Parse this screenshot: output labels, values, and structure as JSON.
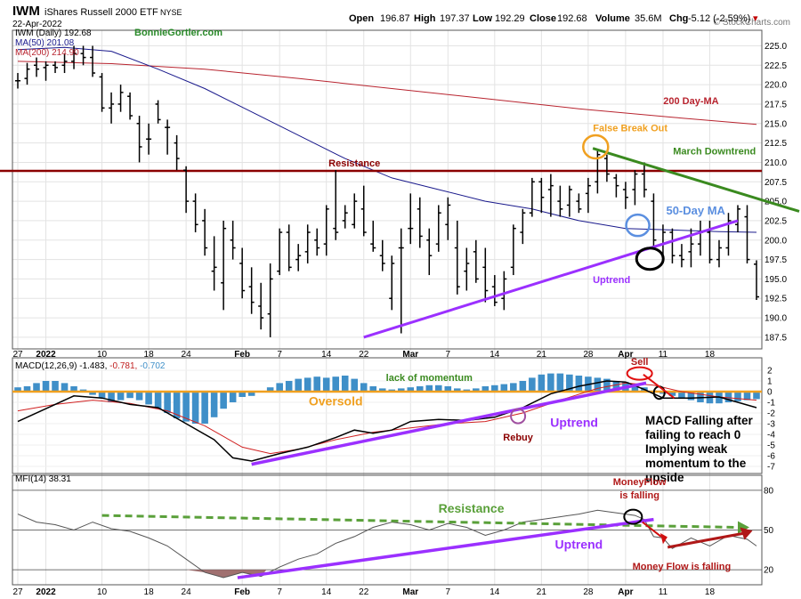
{
  "header": {
    "symbol": "IWM",
    "name": "iShares Russell 2000 ETF",
    "exchange": "NYSE",
    "date": "22-Apr-2022",
    "open_label": "Open",
    "open": "196.87",
    "high_label": "High",
    "high": "197.37",
    "low_label": "Low",
    "low": "192.29",
    "close_label": "Close",
    "close": "192.68",
    "volume_label": "Volume",
    "volume": "35.6M",
    "chg_label": "Chg",
    "chg": "-5.12 (-2.59%)",
    "chg_glyph": "▾",
    "watermark": "© StockCharts.com"
  },
  "legend": {
    "price": "IWM (Daily) 192.68",
    "ma50": "MA(50) 201.08",
    "ma200": "MA(200) 214.90",
    "author": "BonnieGortler.com"
  },
  "colors": {
    "price": "#000000",
    "ma50": "#1a1a8c",
    "ma200": "#b8242f",
    "resistance": "#8b0000",
    "uptrend": "#9b30ff",
    "downtrend": "#3a8a1f",
    "false_breakout": "#f0a020",
    "ma_circle": "#5b8fe0",
    "macd_hist": "#3f8fc8",
    "oversold_line": "#f0a020",
    "mfi_fill": "#a07070",
    "mfi_resistance": "#5aa03a",
    "money_flow": "#b01818"
  },
  "x_axis": {
    "labels": [
      {
        "text": "27",
        "i": 0
      },
      {
        "text": "2022",
        "i": 3
      },
      {
        "text": "10",
        "i": 9
      },
      {
        "text": "18",
        "i": 14
      },
      {
        "text": "24",
        "i": 18
      },
      {
        "text": "Feb",
        "i": 24
      },
      {
        "text": "7",
        "i": 28
      },
      {
        "text": "14",
        "i": 33
      },
      {
        "text": "22",
        "i": 37
      },
      {
        "text": "Mar",
        "i": 42
      },
      {
        "text": "7",
        "i": 46
      },
      {
        "text": "14",
        "i": 51
      },
      {
        "text": "21",
        "i": 56
      },
      {
        "text": "28",
        "i": 61
      },
      {
        "text": "Apr",
        "i": 65
      },
      {
        "text": "11",
        "i": 69
      },
      {
        "text": "18",
        "i": 74
      }
    ],
    "bold": [
      "2022",
      "Feb",
      "Mar",
      "Apr"
    ]
  },
  "chart_data": [
    {
      "type": "ohlc",
      "panel": "price",
      "ylim": [
        186,
        227
      ],
      "yticks": [
        187.5,
        190.0,
        192.5,
        195.0,
        197.5,
        200.0,
        202.5,
        205.0,
        207.5,
        210.0,
        212.5,
        215.0,
        217.5,
        220.0,
        222.5,
        225.0
      ],
      "ohlc": [
        [
          220.5,
          221.5,
          219.5,
          220.5
        ],
        [
          220.8,
          222.8,
          220.0,
          222.0
        ],
        [
          222.5,
          223.5,
          221.0,
          222.0
        ],
        [
          222.2,
          223.0,
          220.5,
          222.5
        ],
        [
          222.5,
          223.0,
          221.5,
          222.2
        ],
        [
          222.5,
          224.0,
          221.5,
          223.0
        ],
        [
          223.0,
          225.0,
          222.0,
          224.0
        ],
        [
          224.0,
          225.0,
          222.5,
          223.5
        ],
        [
          223.5,
          225.0,
          221.0,
          221.5
        ],
        [
          221.0,
          221.5,
          216.5,
          217.0
        ],
        [
          217.0,
          219.0,
          215.0,
          217.5
        ],
        [
          217.5,
          220.0,
          216.5,
          219.0
        ],
        [
          218.5,
          219.0,
          215.5,
          216.0
        ],
        [
          215.0,
          216.0,
          210.0,
          212.0
        ],
        [
          213.0,
          215.0,
          211.0,
          213.0
        ],
        [
          217.5,
          218.0,
          215.0,
          215.5
        ],
        [
          214.5,
          215.5,
          211.0,
          214.5
        ],
        [
          212.5,
          213.5,
          209.0,
          210.5
        ],
        [
          209.0,
          209.5,
          203.5,
          205.0
        ],
        [
          205.0,
          206.0,
          201.0,
          202.0
        ],
        [
          202.5,
          204.0,
          198.0,
          199.0
        ],
        [
          196.0,
          200.5,
          193.5,
          196.5
        ],
        [
          194.5,
          202.5,
          191.0,
          201.5
        ],
        [
          200.0,
          202.5,
          197.5,
          199.0
        ],
        [
          197.0,
          199.0,
          192.5,
          193.5
        ],
        [
          194.0,
          196.5,
          190.5,
          192.0
        ],
        [
          191.5,
          194.5,
          188.5,
          190.0
        ],
        [
          190.5,
          197.0,
          187.5,
          195.0
        ],
        [
          196.0,
          201.5,
          195.5,
          201.0
        ],
        [
          201.0,
          202.0,
          196.0,
          196.5
        ],
        [
          197.5,
          199.5,
          196.0,
          198.0
        ],
        [
          198.5,
          202.0,
          197.0,
          201.0
        ],
        [
          200.0,
          201.5,
          198.0,
          199.0
        ],
        [
          199.5,
          204.5,
          198.0,
          204.0
        ],
        [
          201.5,
          209.0,
          200.0,
          201.0
        ],
        [
          202.5,
          204.5,
          201.5,
          203.5
        ],
        [
          202.0,
          206.0,
          201.5,
          205.0
        ],
        [
          204.0,
          207.0,
          200.5,
          201.0
        ],
        [
          199.5,
          202.5,
          198.5,
          199.0
        ],
        [
          198.0,
          200.0,
          196.0,
          197.0
        ],
        [
          192.5,
          198.0,
          191.0,
          197.0
        ],
        [
          199.0,
          201.5,
          188.0,
          199.0
        ],
        [
          201.5,
          206.0,
          199.5,
          201.5
        ],
        [
          204.0,
          205.5,
          199.0,
          200.5
        ],
        [
          200.0,
          201.5,
          195.5,
          198.0
        ],
        [
          199.5,
          204.5,
          198.5,
          203.5
        ],
        [
          202.0,
          205.5,
          200.0,
          204.5
        ],
        [
          199.0,
          202.5,
          193.0,
          194.0
        ],
        [
          196.0,
          199.0,
          193.5,
          197.0
        ],
        [
          198.5,
          200.0,
          194.5,
          195.0
        ],
        [
          196.5,
          199.0,
          192.0,
          193.5
        ],
        [
          194.0,
          195.5,
          191.5,
          192.0
        ],
        [
          192.5,
          196.0,
          191.0,
          195.0
        ],
        [
          196.5,
          202.0,
          195.5,
          201.5
        ],
        [
          201.0,
          204.0,
          199.5,
          203.5
        ],
        [
          203.5,
          208.0,
          203.0,
          207.5
        ],
        [
          207.5,
          208.0,
          203.5,
          205.5
        ],
        [
          206.5,
          208.5,
          203.0,
          207.0
        ],
        [
          205.0,
          207.0,
          203.0,
          204.0
        ],
        [
          204.5,
          207.0,
          203.0,
          206.5
        ],
        [
          205.0,
          206.0,
          203.5,
          204.0
        ],
        [
          206.0,
          208.0,
          203.5,
          207.0
        ],
        [
          207.5,
          211.5,
          206.0,
          211.0
        ],
        [
          210.5,
          211.0,
          207.5,
          208.5
        ],
        [
          208.0,
          208.5,
          205.5,
          207.0
        ],
        [
          206.5,
          207.5,
          204.0,
          205.5
        ],
        [
          206.5,
          209.0,
          204.5,
          208.5
        ],
        [
          208.5,
          210.0,
          205.5,
          206.5
        ],
        [
          205.0,
          206.0,
          199.0,
          200.0
        ],
        [
          199.5,
          202.0,
          197.0,
          201.0
        ],
        [
          201.0,
          201.5,
          197.0,
          198.0
        ],
        [
          198.0,
          199.5,
          196.5,
          197.5
        ],
        [
          198.5,
          201.5,
          196.5,
          199.5
        ],
        [
          199.5,
          202.5,
          198.0,
          201.0
        ],
        [
          201.0,
          202.5,
          197.0,
          197.5
        ],
        [
          197.5,
          200.0,
          196.5,
          199.0
        ],
        [
          199.0,
          203.5,
          198.0,
          202.5
        ],
        [
          202.0,
          204.5,
          201.0,
          204.0
        ],
        [
          203.0,
          204.5,
          197.0,
          197.5
        ],
        [
          196.9,
          197.4,
          192.3,
          192.7
        ]
      ],
      "ma50": [
        [
          0,
          224.5
        ],
        [
          5,
          224.8
        ],
        [
          10,
          224.3
        ],
        [
          15,
          222.0
        ],
        [
          20,
          219.5
        ],
        [
          25,
          216.5
        ],
        [
          30,
          213.5
        ],
        [
          35,
          210.5
        ],
        [
          40,
          208.0
        ],
        [
          45,
          206.5
        ],
        [
          50,
          205.0
        ],
        [
          55,
          204.0
        ],
        [
          60,
          202.5
        ],
        [
          65,
          201.5
        ],
        [
          70,
          201.3
        ],
        [
          75,
          201.1
        ],
        [
          79,
          201.0
        ]
      ],
      "ma200": [
        [
          0,
          223.0
        ],
        [
          10,
          222.7
        ],
        [
          20,
          222.0
        ],
        [
          30,
          220.8
        ],
        [
          40,
          219.5
        ],
        [
          50,
          218.2
        ],
        [
          60,
          216.9
        ],
        [
          70,
          215.8
        ],
        [
          79,
          214.9
        ]
      ],
      "annotations": [
        {
          "text": "Resistance",
          "x": 36,
          "y": 209.5,
          "color": "resistance"
        },
        {
          "text": "200 Day-MA",
          "x": 72,
          "y": 217.5,
          "color": "ma200"
        },
        {
          "text": "False Break Out",
          "x": 65.5,
          "y": 214.0,
          "color": "false_breakout"
        },
        {
          "text": "March Downtrend",
          "x": 74.5,
          "y": 211.0,
          "color": "downtrend"
        },
        {
          "text": "50-Day MA",
          "x": 72.5,
          "y": 203.3,
          "color": "ma_circle"
        },
        {
          "text": "Uptrend",
          "x": 63.5,
          "y": 194.5,
          "color": "uptrend"
        }
      ]
    },
    {
      "type": "macd",
      "panel": "macd",
      "title": "MACD(12,26,9) -1.483, -0.781, -0.702",
      "title_parts": {
        "label": "MACD(12,26,9)",
        "macd": "-1.483,",
        "signal": "-0.781,",
        "hist": "-0.702"
      },
      "ylim": [
        -7.5,
        3
      ],
      "yticks": [
        2,
        1,
        0,
        -1,
        -2,
        -3,
        -4,
        -5,
        -6,
        -7
      ],
      "macd": [
        [
          0,
          -2.8
        ],
        [
          3,
          -1.6
        ],
        [
          6,
          -0.4
        ],
        [
          9,
          -0.6
        ],
        [
          12,
          -1.2
        ],
        [
          15,
          -1.5
        ],
        [
          18,
          -3.0
        ],
        [
          21,
          -4.5
        ],
        [
          23,
          -6.2
        ],
        [
          25,
          -6.5
        ],
        [
          28,
          -5.8
        ],
        [
          31,
          -5.2
        ],
        [
          34,
          -4.3
        ],
        [
          36,
          -3.6
        ],
        [
          38,
          -3.9
        ],
        [
          40,
          -3.6
        ],
        [
          42,
          -2.8
        ],
        [
          45,
          -2.6
        ],
        [
          48,
          -2.7
        ],
        [
          51,
          -2.4
        ],
        [
          54,
          -1.5
        ],
        [
          57,
          -0.2
        ],
        [
          60,
          0.5
        ],
        [
          63,
          1.0
        ],
        [
          65,
          0.9
        ],
        [
          67,
          0.2
        ],
        [
          69,
          -0.6
        ],
        [
          72,
          -0.6
        ],
        [
          75,
          -0.5
        ],
        [
          77,
          -1.0
        ],
        [
          79,
          -1.5
        ]
      ],
      "signal": [
        [
          0,
          -1.8
        ],
        [
          4,
          -1.2
        ],
        [
          8,
          -0.8
        ],
        [
          12,
          -1.1
        ],
        [
          16,
          -1.8
        ],
        [
          20,
          -3.2
        ],
        [
          24,
          -5.2
        ],
        [
          27,
          -5.8
        ],
        [
          30,
          -5.4
        ],
        [
          34,
          -4.5
        ],
        [
          38,
          -3.8
        ],
        [
          42,
          -3.4
        ],
        [
          46,
          -3.0
        ],
        [
          50,
          -2.8
        ],
        [
          54,
          -2.0
        ],
        [
          58,
          -0.8
        ],
        [
          62,
          0.3
        ],
        [
          65,
          0.8
        ],
        [
          68,
          0.6
        ],
        [
          71,
          0.0
        ],
        [
          75,
          -0.5
        ],
        [
          79,
          -0.8
        ]
      ],
      "hist": [
        0.4,
        0.5,
        0.8,
        1.0,
        1.0,
        0.8,
        0.5,
        0.2,
        -0.3,
        -0.6,
        -1.0,
        -0.8,
        -0.6,
        -0.8,
        -1.2,
        -1.6,
        -2.0,
        -2.5,
        -2.8,
        -3.0,
        -3.0,
        -2.4,
        -1.6,
        -1.0,
        -0.5,
        -0.4,
        0.0,
        0.4,
        0.8,
        1.0,
        1.2,
        1.3,
        1.4,
        1.3,
        1.4,
        1.5,
        1.2,
        0.8,
        0.5,
        0.3,
        0.2,
        0.3,
        0.4,
        0.5,
        0.6,
        0.6,
        0.5,
        0.3,
        0.2,
        0.3,
        0.5,
        0.6,
        0.7,
        0.8,
        1.0,
        1.3,
        1.6,
        1.7,
        1.7,
        1.6,
        1.5,
        1.4,
        1.3,
        1.2,
        1.0,
        0.9,
        0.6,
        0.4,
        0.1,
        -0.2,
        -0.4,
        -0.6,
        -0.8,
        -1.0,
        -1.1,
        -1.1,
        -1.0,
        -0.9,
        -0.8,
        -0.7
      ],
      "annotations": [
        {
          "text": "lack of momentum",
          "x": 44,
          "y": 1.0,
          "color": "downtrend"
        },
        {
          "text": "Oversold",
          "x": 34,
          "y": -1.3,
          "color": "oversold_line"
        },
        {
          "text": "Uptrend",
          "x": 59.5,
          "y": -3.3,
          "color": "uptrend"
        },
        {
          "text": "Rebuy",
          "x": 53.5,
          "y": -4.6,
          "color": "resistance"
        },
        {
          "text": "Sell",
          "x": 66.5,
          "y": 2.5,
          "color": "money_flow"
        }
      ],
      "note": [
        "MACD Falling after",
        "failing to reach 0",
        "Implying weak",
        "momentum to the",
        "upside"
      ]
    },
    {
      "type": "line",
      "panel": "mfi",
      "title": "MFI(14) 38.31",
      "ylim": [
        10,
        90
      ],
      "yticks": [
        80,
        50,
        20
      ],
      "mfi": [
        [
          0,
          62
        ],
        [
          2,
          56
        ],
        [
          4,
          54
        ],
        [
          6,
          50
        ],
        [
          8,
          56
        ],
        [
          10,
          51
        ],
        [
          12,
          49
        ],
        [
          14,
          44
        ],
        [
          16,
          38
        ],
        [
          18,
          28
        ],
        [
          20,
          18
        ],
        [
          22,
          14
        ],
        [
          24,
          18
        ],
        [
          26,
          15
        ],
        [
          28,
          22
        ],
        [
          30,
          28
        ],
        [
          32,
          32
        ],
        [
          34,
          40
        ],
        [
          36,
          45
        ],
        [
          38,
          52
        ],
        [
          40,
          56
        ],
        [
          42,
          54
        ],
        [
          44,
          50
        ],
        [
          46,
          55
        ],
        [
          48,
          52
        ],
        [
          50,
          46
        ],
        [
          52,
          50
        ],
        [
          54,
          56
        ],
        [
          56,
          58
        ],
        [
          58,
          60
        ],
        [
          60,
          62
        ],
        [
          62,
          65
        ],
        [
          63,
          64
        ],
        [
          65,
          62
        ],
        [
          66,
          61
        ],
        [
          67,
          58
        ],
        [
          68,
          45
        ],
        [
          69,
          44
        ],
        [
          70,
          36
        ],
        [
          72,
          44
        ],
        [
          74,
          38
        ],
        [
          76,
          46
        ],
        [
          78,
          43
        ],
        [
          79,
          38
        ]
      ],
      "annotations": [
        {
          "text": "Resistance",
          "x": 48.5,
          "y": 63,
          "color": "mfi_resistance"
        },
        {
          "text": "Uptrend",
          "x": 60,
          "y": 36,
          "color": "uptrend"
        },
        {
          "text": "Money Flow is falling",
          "x": 71,
          "y": 20,
          "color": "money_flow"
        },
        {
          "text": "MoneyFlow",
          "x": 66.5,
          "y": 84,
          "color": "money_flow"
        },
        {
          "text": "is falling",
          "x": 66.5,
          "y": 74,
          "color": "money_flow"
        }
      ]
    }
  ]
}
